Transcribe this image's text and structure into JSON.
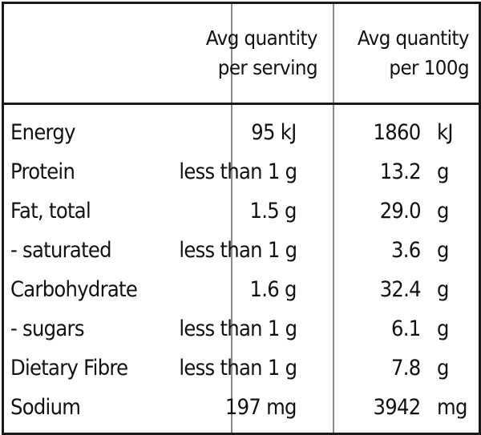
{
  "header": {
    "col_serving": [
      "Avg quantity",
      "per serving"
    ],
    "col_100g": [
      "Avg quantity",
      "per 100g"
    ]
  },
  "rows": [
    {
      "name": "Energy",
      "serving": "95 kJ",
      "per100": "1860",
      "unit": "kJ"
    },
    {
      "name": "Protein",
      "serving": "less than 1 g",
      "per100": "13.2",
      "unit": "g"
    },
    {
      "name": "Fat, total",
      "serving": "1.5 g",
      "per100": "29.0",
      "unit": "g"
    },
    {
      "name": "- saturated",
      "serving": "less than 1 g",
      "per100": "3.6",
      "unit": "g"
    },
    {
      "name": "Carbohydrate",
      "serving": "1.6 g",
      "per100": "32.4",
      "unit": "g"
    },
    {
      "name": "- sugars",
      "serving": "less than 1 g",
      "per100": "6.1",
      "unit": "g"
    },
    {
      "name": "Dietary Fibre",
      "serving": "less than 1 g",
      "per100": "7.8",
      "unit": "g"
    },
    {
      "name": "Sodium",
      "serving": "197 mg",
      "per100": "3942",
      "unit": "mg"
    }
  ]
}
